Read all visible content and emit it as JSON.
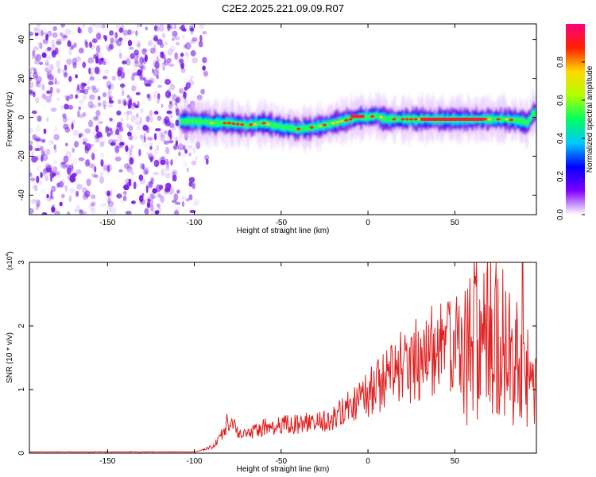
{
  "title": "C2E2.2025.221.09.09.R07",
  "chart_data": [
    {
      "type": "heatmap",
      "xlabel": "Height of straight line (km)",
      "ylabel": "Frequency (Hz)",
      "xlim": [
        -195,
        97
      ],
      "ylim": [
        -50,
        48
      ],
      "xticks": [
        -150,
        -100,
        -50,
        0,
        50
      ],
      "yticks": [
        -40,
        -20,
        0,
        20,
        40
      ],
      "noise_region_x": [
        -195,
        -98
      ],
      "ridge": {
        "x": [
          -108,
          -100,
          -90,
          -80,
          -70,
          -60,
          -50,
          -40,
          -30,
          -20,
          -10,
          -5,
          0,
          5,
          10,
          20,
          30,
          40,
          50,
          60,
          70,
          80,
          88,
          92,
          95
        ],
        "y": [
          -2,
          -2,
          -3,
          -3,
          -4,
          -3,
          -5,
          -6,
          -5,
          -3,
          -1,
          0,
          0,
          1,
          -1,
          -1,
          -1,
          -1,
          -1,
          -1,
          -1,
          -1,
          -2,
          -3,
          2
        ]
      },
      "colorbar": {
        "label": "Normalized spectral amplitude",
        "range": [
          0,
          1
        ],
        "ticks": [
          "0.0",
          "0.2",
          "0.4",
          "0.6",
          "0.8"
        ],
        "tick_values": [
          0,
          0.2,
          0.4,
          0.6,
          0.8
        ],
        "colors": [
          "#ffffff",
          "#8000ff",
          "#0000ff",
          "#00c8ff",
          "#00ff60",
          "#b0ff00",
          "#ffd800",
          "#ff2000",
          "#ff0080"
        ]
      },
      "noise_color": "#7a1fe8"
    },
    {
      "type": "line",
      "xlabel": "Height of straight line (km)",
      "ylabel": "SNR (10 * v/v)",
      "multiplier": "(x10",
      "multiplier_exp": "4",
      "multiplier_close": ")",
      "xlim": [
        -195,
        97
      ],
      "ylim": [
        0,
        3
      ],
      "xticks": [
        -150,
        -100,
        -50,
        0,
        50
      ],
      "yticks": [
        0,
        1,
        2,
        3
      ],
      "color": "#e02020",
      "envelope": {
        "x": [
          -195,
          -100,
          -95,
          -90,
          -85,
          -80,
          -75,
          -70,
          -60,
          -50,
          -40,
          -30,
          -20,
          -10,
          0,
          10,
          20,
          30,
          40,
          50,
          60,
          65,
          70,
          75,
          80,
          85,
          90,
          95
        ],
        "y": [
          0.02,
          0.02,
          0.05,
          0.1,
          0.25,
          0.55,
          0.3,
          0.3,
          0.4,
          0.45,
          0.45,
          0.5,
          0.55,
          0.75,
          0.95,
          1.15,
          1.35,
          1.5,
          1.65,
          1.7,
          1.75,
          1.8,
          1.8,
          1.75,
          1.6,
          1.4,
          1.2,
          1.0
        ]
      },
      "peak": {
        "x": 89,
        "y": 3.0
      }
    }
  ]
}
